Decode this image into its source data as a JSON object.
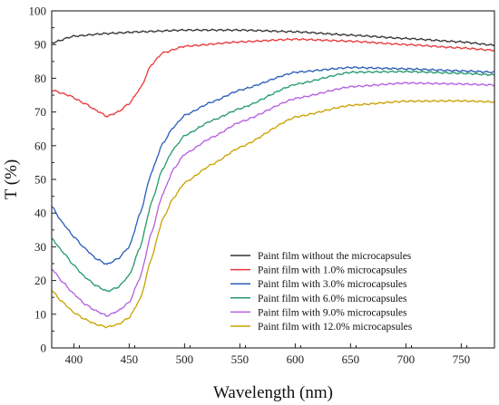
{
  "chart_data": {
    "type": "line",
    "title": "",
    "xlabel": "Wavelength (nm)",
    "ylabel": "T (%)",
    "xlim": [
      380,
      780
    ],
    "ylim": [
      0,
      100
    ],
    "xticks": [
      400,
      450,
      500,
      550,
      600,
      650,
      700,
      750
    ],
    "yticks": [
      0,
      10,
      20,
      30,
      40,
      50,
      60,
      70,
      80,
      90,
      100
    ],
    "grid": false,
    "legend_position": "bottom-right",
    "series": [
      {
        "name": "Paint film  without the microcapsules",
        "color": "#333333",
        "x": [
          380,
          400,
          430,
          460,
          500,
          550,
          600,
          650,
          700,
          750,
          780
        ],
        "y": [
          90.5,
          92.5,
          93.3,
          93.8,
          94.3,
          94.3,
          93.8,
          92.8,
          91.8,
          90.8,
          89.8
        ]
      },
      {
        "name": "Paint film  with 1.0% microcapsules",
        "color": "#e8383a",
        "x": [
          380,
          395,
          410,
          420,
          430,
          440,
          450,
          460,
          470,
          480,
          500,
          550,
          600,
          650,
          700,
          750,
          780
        ],
        "y": [
          76.5,
          75,
          72.5,
          70.5,
          68.7,
          70,
          72.5,
          77,
          84,
          87.5,
          89.5,
          90.8,
          91.6,
          91,
          90,
          89,
          88.3
        ]
      },
      {
        "name": "Paint film  with 3.0% microcapsules",
        "color": "#2a5db8",
        "x": [
          380,
          390,
          400,
          410,
          420,
          430,
          440,
          450,
          460,
          470,
          480,
          490,
          500,
          525,
          550,
          600,
          650,
          700,
          750,
          780
        ],
        "y": [
          42,
          37,
          33,
          29.5,
          26.5,
          24.8,
          26.5,
          30,
          40,
          52,
          60.5,
          65.5,
          69,
          73,
          76.5,
          81.8,
          83.2,
          82.8,
          82.2,
          81.8
        ]
      },
      {
        "name": "Paint film  with 6.0% microcapsules",
        "color": "#249a6a",
        "x": [
          380,
          390,
          400,
          410,
          420,
          430,
          440,
          450,
          460,
          470,
          480,
          490,
          500,
          525,
          550,
          600,
          650,
          700,
          750,
          780
        ],
        "y": [
          32.5,
          28.5,
          24.5,
          21,
          18.5,
          16.8,
          18,
          21.5,
          30,
          43,
          53,
          59,
          63,
          67.5,
          71,
          78.2,
          81.8,
          82,
          81.5,
          81
        ]
      },
      {
        "name": "Paint film  with 9.0% microcapsules",
        "color": "#b45fe0",
        "x": [
          380,
          390,
          400,
          410,
          420,
          430,
          440,
          450,
          460,
          470,
          480,
          490,
          500,
          525,
          550,
          600,
          650,
          700,
          750,
          780
        ],
        "y": [
          23.5,
          19.5,
          16,
          13,
          11,
          9.5,
          11,
          13.5,
          21,
          34,
          45.5,
          53,
          57.5,
          62.5,
          67,
          74,
          77.5,
          78.6,
          78.3,
          78
        ]
      },
      {
        "name": "Paint film  with 12.0% microcapsules",
        "color": "#c9a200",
        "x": [
          380,
          390,
          400,
          410,
          420,
          430,
          440,
          450,
          460,
          470,
          480,
          490,
          500,
          525,
          550,
          600,
          650,
          700,
          750,
          780
        ],
        "y": [
          17,
          13.5,
          10.5,
          8.5,
          7,
          6.2,
          7,
          9,
          14.5,
          26.5,
          38,
          44.5,
          49,
          54.5,
          59.5,
          68.5,
          72,
          73.2,
          73.3,
          73
        ]
      }
    ]
  }
}
